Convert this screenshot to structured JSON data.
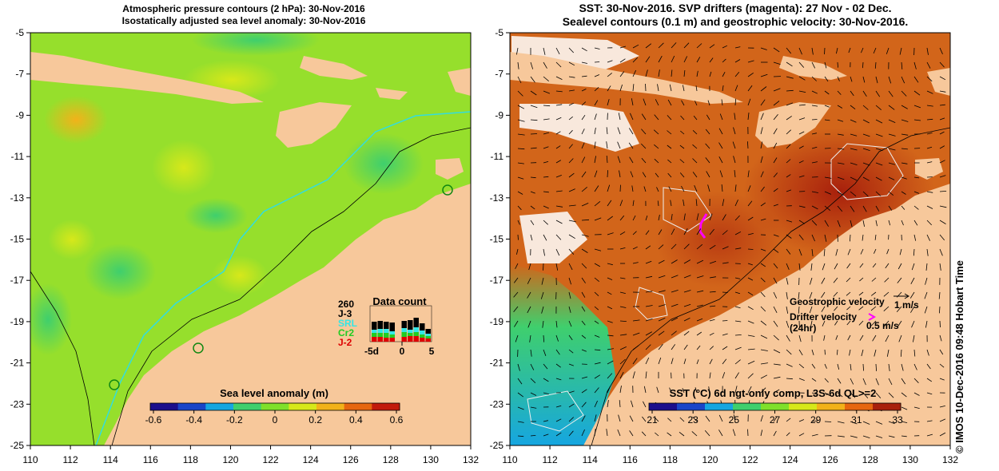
{
  "left_panel": {
    "title_line1": "Atmospheric pressure contours (2 hPa): 30-Nov-2016",
    "title_line2": "Isostatically adjusted sea level anomaly: 30-Nov-2016",
    "colorbar_title": "Sea level anomaly (m)",
    "colorbar_ticks": [
      "-0.6",
      "-0.4",
      "-0.2",
      "0",
      "0.2",
      "0.4",
      "0.6"
    ],
    "colorbar_colors": [
      "#1c0f8c",
      "#1a45c8",
      "#16a6e0",
      "#3fcf6d",
      "#7fe02a",
      "#d7e81a",
      "#f2b21a",
      "#e6660f",
      "#c21a0c"
    ],
    "data_count": {
      "title": "Data count",
      "max_label": "260",
      "sources": [
        {
          "name": "J-3",
          "color": "#000000"
        },
        {
          "name": "SRL",
          "color": "#33e6e6"
        },
        {
          "name": "Cr2",
          "color": "#22cc22"
        },
        {
          "name": "J-2",
          "color": "#dd0000"
        }
      ],
      "x_labels": [
        "-5d",
        "0",
        "5"
      ]
    }
  },
  "right_panel": {
    "title_line1": "SST: 30-Nov-2016. SVP drifters (magenta): 27 Nov - 02 Dec.",
    "title_line2": "Sealevel contours (0.1 m) and geostrophic velocity: 30-Nov-2016.",
    "geostrophic_label": "Geostrophic velocity",
    "geostrophic_scale": "1 m/s",
    "drifter_label_line1": "Drifter velocity",
    "drifter_label_line2": "(24hr)",
    "drifter_scale": "0.5 m/s",
    "colorbar_title": "SST (°C) 6d ngt-only comp, L3S-6d QL>=2",
    "colorbar_ticks": [
      "21",
      "23",
      "25",
      "27",
      "29",
      "31",
      "33"
    ],
    "colorbar_colors": [
      "#1c0f8c",
      "#1a45c8",
      "#16a6e0",
      "#3fcf6d",
      "#7fe02a",
      "#d7e81a",
      "#f2b21a",
      "#e6660f",
      "#a8200c"
    ]
  },
  "axes": {
    "x_ticks": [
      "110",
      "112",
      "114",
      "116",
      "118",
      "120",
      "122",
      "124",
      "126",
      "128",
      "130",
      "132"
    ],
    "y_ticks": [
      "-5",
      "-7",
      "-9",
      "-11",
      "-13",
      "-15",
      "-17",
      "-19",
      "-21",
      "-23",
      "-25"
    ]
  },
  "colors": {
    "land": "#f7c89b",
    "sla_ocean": "#96df2c",
    "sst_ocean": "#d2651a",
    "drifter": "#ff00ff",
    "cyan_track": "#33dddd"
  },
  "credit": "©  IMOS 10-Dec-2016 09:48 Hobart Time"
}
